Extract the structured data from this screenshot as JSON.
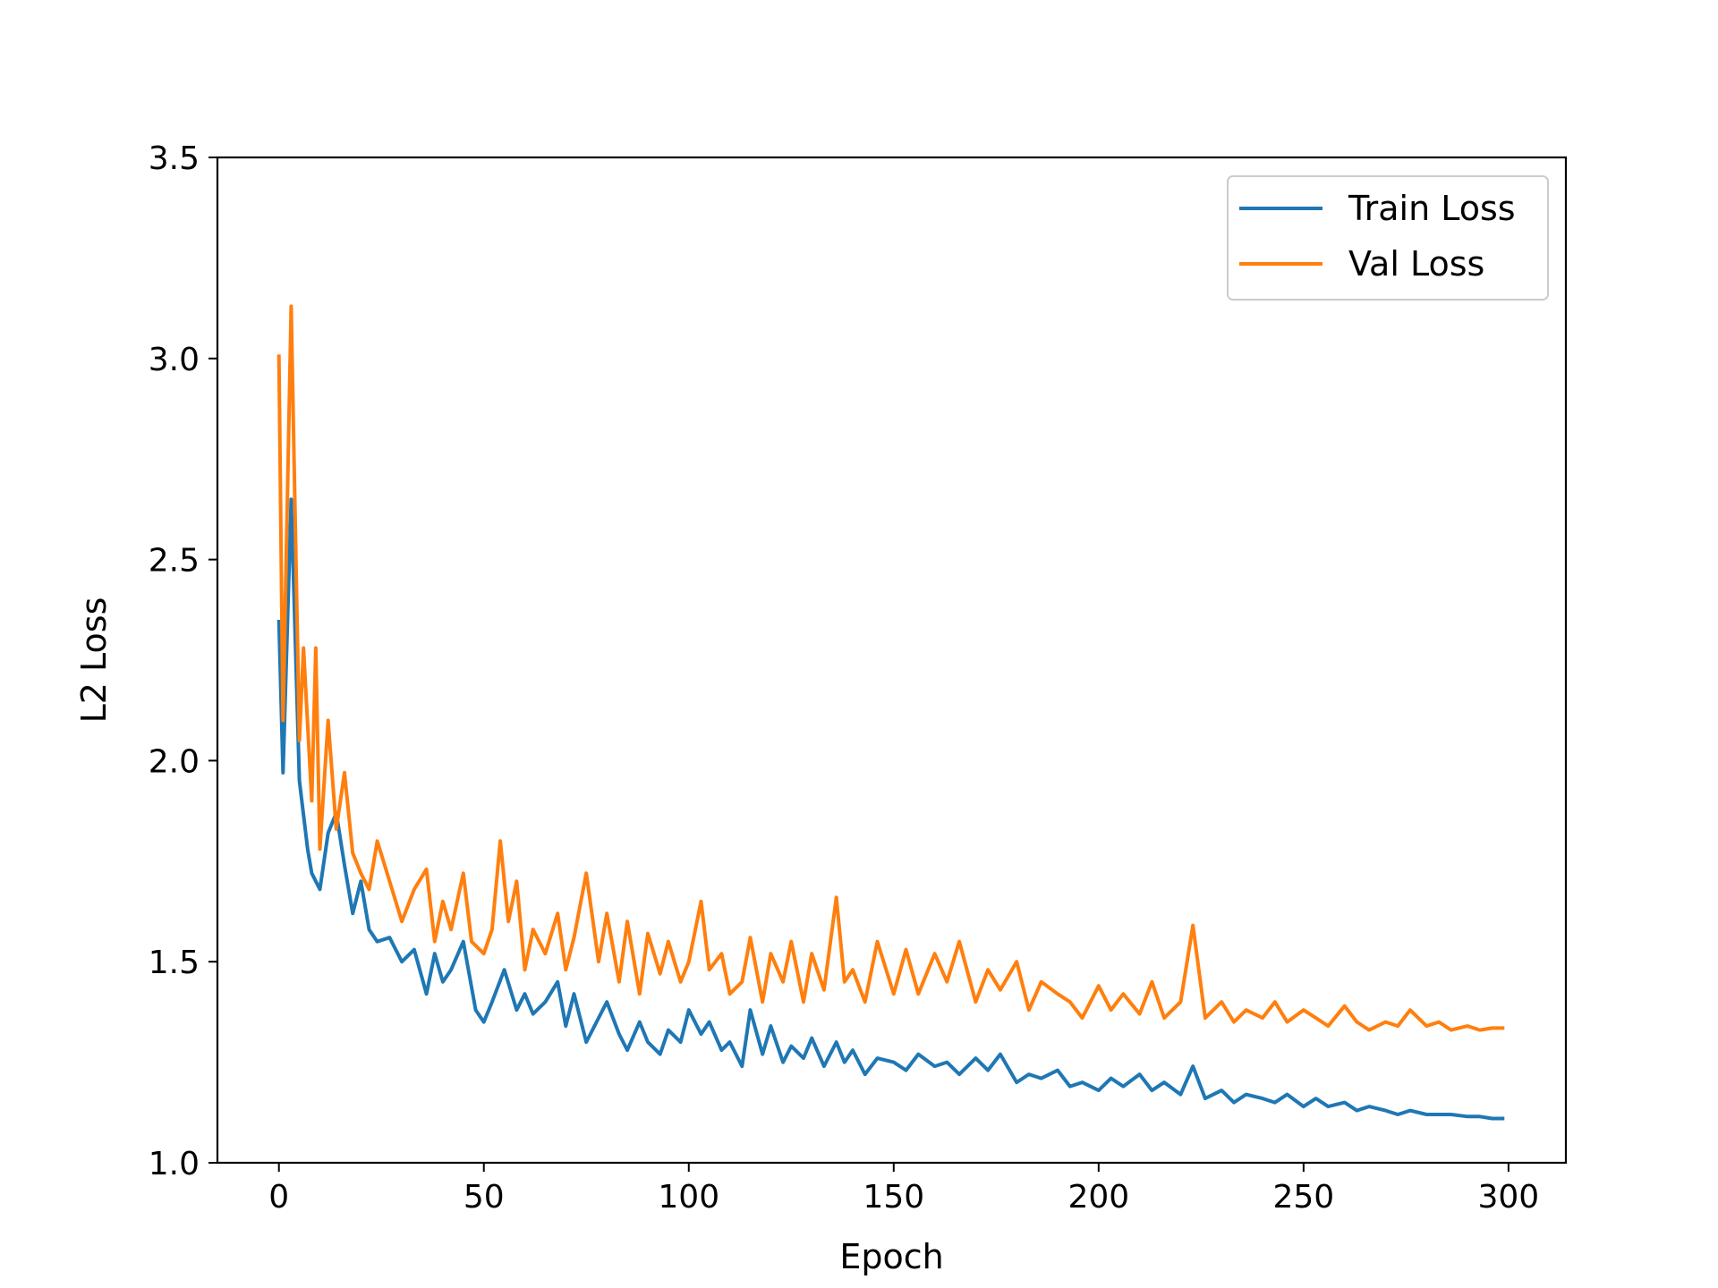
{
  "chart_data": {
    "type": "line",
    "xlabel": "Epoch",
    "ylabel": "L2 Loss",
    "xlim": [
      -15,
      314
    ],
    "ylim": [
      1.0,
      3.5
    ],
    "xticks": [
      0,
      50,
      100,
      150,
      200,
      250,
      300
    ],
    "yticks": [
      1.0,
      1.5,
      2.0,
      2.5,
      3.0,
      3.5
    ],
    "xtick_labels": [
      "0",
      "50",
      "100",
      "150",
      "200",
      "250",
      "300"
    ],
    "ytick_labels": [
      "1.0",
      "1.5",
      "2.0",
      "2.5",
      "3.0",
      "3.5"
    ],
    "grid": false,
    "legend_position": "top-right",
    "series": [
      {
        "name": "Train Loss",
        "color": "#1f77b4",
        "x": [
          0,
          1,
          3,
          5,
          7,
          8,
          10,
          12,
          14,
          16,
          18,
          20,
          22,
          24,
          27,
          30,
          33,
          36,
          38,
          40,
          42,
          45,
          48,
          50,
          52,
          55,
          58,
          60,
          62,
          65,
          68,
          70,
          72,
          75,
          78,
          80,
          83,
          85,
          88,
          90,
          93,
          95,
          98,
          100,
          103,
          105,
          108,
          110,
          113,
          115,
          118,
          120,
          123,
          125,
          128,
          130,
          133,
          136,
          138,
          140,
          143,
          146,
          150,
          153,
          156,
          160,
          163,
          166,
          170,
          173,
          176,
          180,
          183,
          186,
          190,
          193,
          196,
          200,
          203,
          206,
          210,
          213,
          216,
          220,
          223,
          226,
          230,
          233,
          236,
          240,
          243,
          246,
          250,
          253,
          256,
          260,
          263,
          266,
          270,
          273,
          276,
          280,
          283,
          286,
          290,
          293,
          296,
          299
        ],
        "y": [
          2.35,
          1.97,
          2.65,
          1.95,
          1.78,
          1.72,
          1.68,
          1.82,
          1.87,
          1.74,
          1.62,
          1.7,
          1.58,
          1.55,
          1.56,
          1.5,
          1.53,
          1.42,
          1.52,
          1.45,
          1.48,
          1.55,
          1.38,
          1.35,
          1.4,
          1.48,
          1.38,
          1.42,
          1.37,
          1.4,
          1.45,
          1.34,
          1.42,
          1.3,
          1.36,
          1.4,
          1.32,
          1.28,
          1.35,
          1.3,
          1.27,
          1.33,
          1.3,
          1.38,
          1.32,
          1.35,
          1.28,
          1.3,
          1.24,
          1.38,
          1.27,
          1.34,
          1.25,
          1.29,
          1.26,
          1.31,
          1.24,
          1.3,
          1.25,
          1.28,
          1.22,
          1.26,
          1.25,
          1.23,
          1.27,
          1.24,
          1.25,
          1.22,
          1.26,
          1.23,
          1.27,
          1.2,
          1.22,
          1.21,
          1.23,
          1.19,
          1.2,
          1.18,
          1.21,
          1.19,
          1.22,
          1.18,
          1.2,
          1.17,
          1.24,
          1.16,
          1.18,
          1.15,
          1.17,
          1.16,
          1.15,
          1.17,
          1.14,
          1.16,
          1.14,
          1.15,
          1.13,
          1.14,
          1.13,
          1.12,
          1.13,
          1.12,
          1.12,
          1.12,
          1.115,
          1.115,
          1.11,
          1.11
        ]
      },
      {
        "name": "Val Loss",
        "color": "#ff7f0e",
        "x": [
          0,
          1,
          3,
          5,
          6,
          8,
          9,
          10,
          12,
          14,
          16,
          18,
          20,
          22,
          24,
          27,
          30,
          33,
          36,
          38,
          40,
          42,
          45,
          47,
          50,
          52,
          54,
          56,
          58,
          60,
          62,
          65,
          68,
          70,
          72,
          75,
          78,
          80,
          83,
          85,
          88,
          90,
          93,
          95,
          98,
          100,
          103,
          105,
          108,
          110,
          113,
          115,
          118,
          120,
          123,
          125,
          128,
          130,
          133,
          136,
          138,
          140,
          143,
          146,
          150,
          153,
          156,
          160,
          163,
          166,
          170,
          173,
          176,
          180,
          183,
          186,
          190,
          193,
          196,
          200,
          203,
          206,
          210,
          213,
          216,
          220,
          223,
          226,
          230,
          233,
          236,
          240,
          243,
          246,
          250,
          253,
          256,
          260,
          263,
          266,
          270,
          273,
          276,
          280,
          283,
          286,
          290,
          293,
          296,
          299
        ],
        "y": [
          3.01,
          2.1,
          3.13,
          2.05,
          2.28,
          1.9,
          2.28,
          1.78,
          2.1,
          1.83,
          1.97,
          1.77,
          1.72,
          1.68,
          1.8,
          1.7,
          1.6,
          1.68,
          1.73,
          1.55,
          1.65,
          1.58,
          1.72,
          1.55,
          1.52,
          1.58,
          1.8,
          1.6,
          1.7,
          1.48,
          1.58,
          1.52,
          1.62,
          1.48,
          1.56,
          1.72,
          1.5,
          1.62,
          1.45,
          1.6,
          1.42,
          1.57,
          1.47,
          1.55,
          1.45,
          1.5,
          1.65,
          1.48,
          1.52,
          1.42,
          1.45,
          1.56,
          1.4,
          1.52,
          1.45,
          1.55,
          1.4,
          1.52,
          1.43,
          1.66,
          1.45,
          1.48,
          1.4,
          1.55,
          1.42,
          1.53,
          1.42,
          1.52,
          1.45,
          1.55,
          1.4,
          1.48,
          1.43,
          1.5,
          1.38,
          1.45,
          1.42,
          1.4,
          1.36,
          1.44,
          1.38,
          1.42,
          1.37,
          1.45,
          1.36,
          1.4,
          1.59,
          1.36,
          1.4,
          1.35,
          1.38,
          1.36,
          1.4,
          1.35,
          1.38,
          1.36,
          1.34,
          1.39,
          1.35,
          1.33,
          1.35,
          1.34,
          1.38,
          1.34,
          1.35,
          1.33,
          1.34,
          1.33,
          1.335,
          1.335
        ]
      }
    ]
  }
}
